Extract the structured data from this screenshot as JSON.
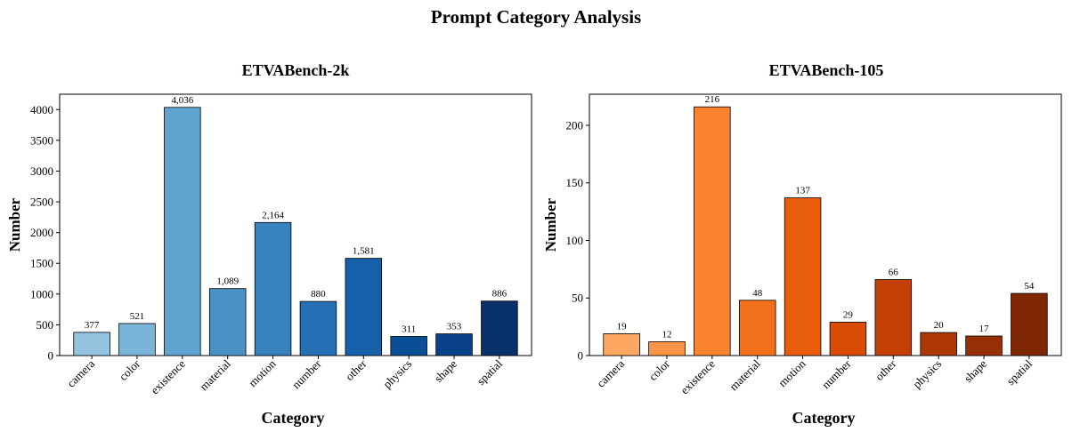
{
  "figure_title": "Prompt Category Analysis",
  "chart_data": [
    {
      "type": "bar",
      "title": "ETVABench-2k",
      "xlabel": "Category",
      "ylabel": "Number",
      "categories": [
        "camera",
        "color",
        "existence",
        "material",
        "motion",
        "number",
        "other",
        "physics",
        "shape",
        "spatial"
      ],
      "values": [
        377,
        521,
        4036,
        1089,
        2164,
        880,
        1581,
        311,
        353,
        886
      ],
      "value_labels": [
        "377",
        "521",
        "4,036",
        "1,089",
        "2,164",
        "880",
        "1,581",
        "311",
        "353",
        "886"
      ],
      "colors": [
        "#94c4df",
        "#7ab4d9",
        "#5fa3d0",
        "#4a92c6",
        "#3781bd",
        "#2570b5",
        "#1660aa",
        "#0a4f96",
        "#084188",
        "#08306b"
      ],
      "ylim": [
        0,
        4250
      ],
      "yticks": [
        0,
        500,
        1000,
        1500,
        2000,
        2500,
        3000,
        3500,
        4000
      ],
      "grid": false
    },
    {
      "type": "bar",
      "title": "ETVABench-105",
      "xlabel": "Category",
      "ylabel": "Number",
      "categories": [
        "camera",
        "color",
        "existence",
        "material",
        "motion",
        "number",
        "other",
        "physics",
        "shape",
        "spatial"
      ],
      "values": [
        19,
        12,
        216,
        48,
        137,
        29,
        66,
        20,
        17,
        54
      ],
      "value_labels": [
        "19",
        "12",
        "216",
        "48",
        "137",
        "29",
        "66",
        "20",
        "17",
        "54"
      ],
      "colors": [
        "#fda762",
        "#fd9546",
        "#fa8331",
        "#f3701b",
        "#e85e0c",
        "#d84d03",
        "#c44002",
        "#ad3803",
        "#962f03",
        "#7f2704"
      ],
      "ylim": [
        0,
        227
      ],
      "yticks": [
        0,
        50,
        100,
        150,
        200
      ],
      "grid": false
    }
  ]
}
